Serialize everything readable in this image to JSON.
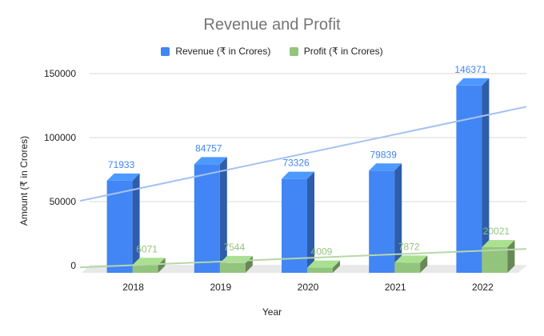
{
  "chart_data": {
    "type": "bar",
    "title": "Revenue and Profit",
    "xlabel": "Year",
    "ylabel": "Amount (₹ in Crores)",
    "categories": [
      "2018",
      "2019",
      "2020",
      "2021",
      "2022"
    ],
    "series": [
      {
        "name": "Revenue (₹ in Crores)",
        "values": [
          71933,
          84757,
          73326,
          79839,
          146371
        ],
        "color": "#4285f4"
      },
      {
        "name": "Profit (₹ in Crores)",
        "values": [
          6071,
          7544,
          4009,
          7872,
          20021
        ],
        "color": "#93c47d"
      }
    ],
    "yticks": [
      "0",
      "50000",
      "100000",
      "150000"
    ],
    "ylim": [
      0,
      150000
    ],
    "grid": true,
    "legend_position": "top",
    "trendlines": true,
    "style": "3d"
  }
}
